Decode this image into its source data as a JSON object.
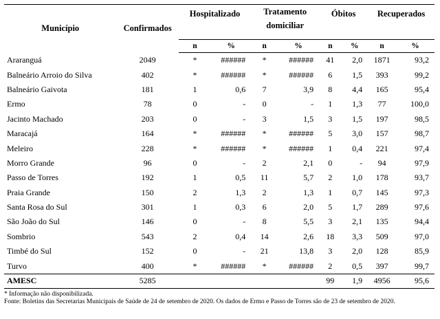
{
  "header": {
    "municipio": "Município",
    "confirmados": "Confirmados",
    "hospitalizado": "Hospitalizado",
    "tratamento_l1": "Tratamento",
    "tratamento_l2": "domiciliar",
    "obitos": "Óbitos",
    "recuperados": "Recuperados",
    "n": "n",
    "pct": "%"
  },
  "rows": [
    {
      "municipio": "Araranguá",
      "confirmados": "2049",
      "hosp_n": "*",
      "hosp_pct": "######",
      "trat_n": "*",
      "trat_pct": "######",
      "obitos_n": "41",
      "obitos_pct": "2,0",
      "rec_n": "1871",
      "rec_pct": "93,2"
    },
    {
      "municipio": "Balneário Arroio do Silva",
      "confirmados": "402",
      "hosp_n": "*",
      "hosp_pct": "######",
      "trat_n": "*",
      "trat_pct": "######",
      "obitos_n": "6",
      "obitos_pct": "1,5",
      "rec_n": "393",
      "rec_pct": "99,2"
    },
    {
      "municipio": "Balneário Gaivota",
      "confirmados": "181",
      "hosp_n": "1",
      "hosp_pct": "0,6",
      "trat_n": "7",
      "trat_pct": "3,9",
      "obitos_n": "8",
      "obitos_pct": "4,4",
      "rec_n": "165",
      "rec_pct": "95,4"
    },
    {
      "municipio": "Ermo",
      "confirmados": "78",
      "hosp_n": "0",
      "hosp_pct": "-",
      "trat_n": "0",
      "trat_pct": "-",
      "obitos_n": "1",
      "obitos_pct": "1,3",
      "rec_n": "77",
      "rec_pct": "100,0"
    },
    {
      "municipio": "Jacinto Machado",
      "confirmados": "203",
      "hosp_n": "0",
      "hosp_pct": "-",
      "trat_n": "3",
      "trat_pct": "1,5",
      "obitos_n": "3",
      "obitos_pct": "1,5",
      "rec_n": "197",
      "rec_pct": "98,5"
    },
    {
      "municipio": "Maracajá",
      "confirmados": "164",
      "hosp_n": "*",
      "hosp_pct": "######",
      "trat_n": "*",
      "trat_pct": "######",
      "obitos_n": "5",
      "obitos_pct": "3,0",
      "rec_n": "157",
      "rec_pct": "98,7"
    },
    {
      "municipio": "Meleiro",
      "confirmados": "228",
      "hosp_n": "*",
      "hosp_pct": "######",
      "trat_n": "*",
      "trat_pct": "######",
      "obitos_n": "1",
      "obitos_pct": "0,4",
      "rec_n": "221",
      "rec_pct": "97,4"
    },
    {
      "municipio": "Morro Grande",
      "confirmados": "96",
      "hosp_n": "0",
      "hosp_pct": "-",
      "trat_n": "2",
      "trat_pct": "2,1",
      "obitos_n": "0",
      "obitos_pct": "-",
      "rec_n": "94",
      "rec_pct": "97,9"
    },
    {
      "municipio": "Passo de Torres",
      "confirmados": "192",
      "hosp_n": "1",
      "hosp_pct": "0,5",
      "trat_n": "11",
      "trat_pct": "5,7",
      "obitos_n": "2",
      "obitos_pct": "1,0",
      "rec_n": "178",
      "rec_pct": "93,7"
    },
    {
      "municipio": "Praia Grande",
      "confirmados": "150",
      "hosp_n": "2",
      "hosp_pct": "1,3",
      "trat_n": "2",
      "trat_pct": "1,3",
      "obitos_n": "1",
      "obitos_pct": "0,7",
      "rec_n": "145",
      "rec_pct": "97,3"
    },
    {
      "municipio": "Santa Rosa do Sul",
      "confirmados": "301",
      "hosp_n": "1",
      "hosp_pct": "0,3",
      "trat_n": "6",
      "trat_pct": "2,0",
      "obitos_n": "5",
      "obitos_pct": "1,7",
      "rec_n": "289",
      "rec_pct": "97,6"
    },
    {
      "municipio": "São João do Sul",
      "confirmados": "146",
      "hosp_n": "0",
      "hosp_pct": "-",
      "trat_n": "8",
      "trat_pct": "5,5",
      "obitos_n": "3",
      "obitos_pct": "2,1",
      "rec_n": "135",
      "rec_pct": "94,4"
    },
    {
      "municipio": "Sombrio",
      "confirmados": "543",
      "hosp_n": "2",
      "hosp_pct": "0,4",
      "trat_n": "14",
      "trat_pct": "2,6",
      "obitos_n": "18",
      "obitos_pct": "3,3",
      "rec_n": "509",
      "rec_pct": "97,0"
    },
    {
      "municipio": "Timbé do Sul",
      "confirmados": "152",
      "hosp_n": "0",
      "hosp_pct": "-",
      "trat_n": "21",
      "trat_pct": "13,8",
      "obitos_n": "3",
      "obitos_pct": "2,0",
      "rec_n": "128",
      "rec_pct": "85,9"
    },
    {
      "municipio": "Turvo",
      "confirmados": "400",
      "hosp_n": "*",
      "hosp_pct": "######",
      "trat_n": "*",
      "trat_pct": "######",
      "obitos_n": "2",
      "obitos_pct": "0,5",
      "rec_n": "397",
      "rec_pct": "99,7"
    }
  ],
  "total": {
    "municipio": "AMESC",
    "confirmados": "5285",
    "hosp_n": "",
    "hosp_pct": "",
    "trat_n": "",
    "trat_pct": "",
    "obitos_n": "99",
    "obitos_pct": "1,9",
    "rec_n": "4956",
    "rec_pct": "95,6"
  },
  "notes": {
    "footnote": "* Informação não disponibilizada.",
    "source": "Fonte: Boletins das Secretarias Municipais de Saúde de 24 de setembro de 2020. Os dados de Ermo e Passo de Torres são de 23 de setembro de 2020."
  }
}
